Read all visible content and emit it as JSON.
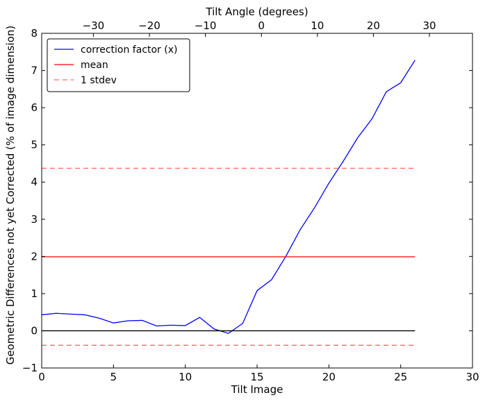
{
  "chart_data": {
    "type": "line",
    "xlabel": "Tilt Image",
    "ylabel": "Geometric Differences not yet Corrected (% of image dimension)",
    "top_xlabel": "Tilt Angle (degrees)",
    "xlim": [
      0,
      30
    ],
    "ylim": [
      -1,
      8
    ],
    "x_ticks": [
      0,
      5,
      10,
      15,
      20,
      25,
      30
    ],
    "y_ticks": [
      -1,
      0,
      1,
      2,
      3,
      4,
      5,
      6,
      7,
      8
    ],
    "top_ticks": [
      {
        "x": 3.6,
        "label": "−30"
      },
      {
        "x": 7.5,
        "label": "−20"
      },
      {
        "x": 11.4,
        "label": "−10"
      },
      {
        "x": 15.3,
        "label": "0"
      },
      {
        "x": 19.2,
        "label": "10"
      },
      {
        "x": 23.1,
        "label": "20"
      },
      {
        "x": 27.0,
        "label": "30"
      }
    ],
    "legend_position": "top-left",
    "series": [
      {
        "name": "correction factor (x)",
        "color": "#0000ff",
        "style": "solid",
        "x": [
          0,
          1,
          2,
          3,
          4,
          5,
          6,
          7,
          8,
          9,
          10,
          11,
          12,
          13,
          14,
          15,
          16,
          17,
          18,
          19,
          20,
          21,
          22,
          23,
          24,
          25,
          26
        ],
        "y": [
          0.43,
          0.47,
          0.45,
          0.43,
          0.34,
          0.21,
          0.27,
          0.28,
          0.13,
          0.15,
          0.14,
          0.36,
          0.05,
          -0.07,
          0.2,
          1.08,
          1.37,
          2.0,
          2.72,
          3.31,
          3.97,
          4.56,
          5.19,
          5.7,
          6.43,
          6.67,
          7.28
        ]
      },
      {
        "name": "mean",
        "color": "#ff0000",
        "style": "solid",
        "x": [
          0,
          26
        ],
        "y": [
          1.99,
          1.99
        ]
      },
      {
        "name": "1 stdev",
        "color": "#ff6666",
        "style": "dashed",
        "x": [
          0,
          26
        ],
        "y": [
          4.37,
          4.37
        ]
      },
      {
        "name": "",
        "color": "#ff6666",
        "style": "dashed",
        "x": [
          0,
          26
        ],
        "y": [
          -0.39,
          -0.39
        ]
      },
      {
        "name": "",
        "color": "#000000",
        "style": "solid",
        "x": [
          0,
          26
        ],
        "y": [
          0,
          0
        ]
      }
    ]
  }
}
